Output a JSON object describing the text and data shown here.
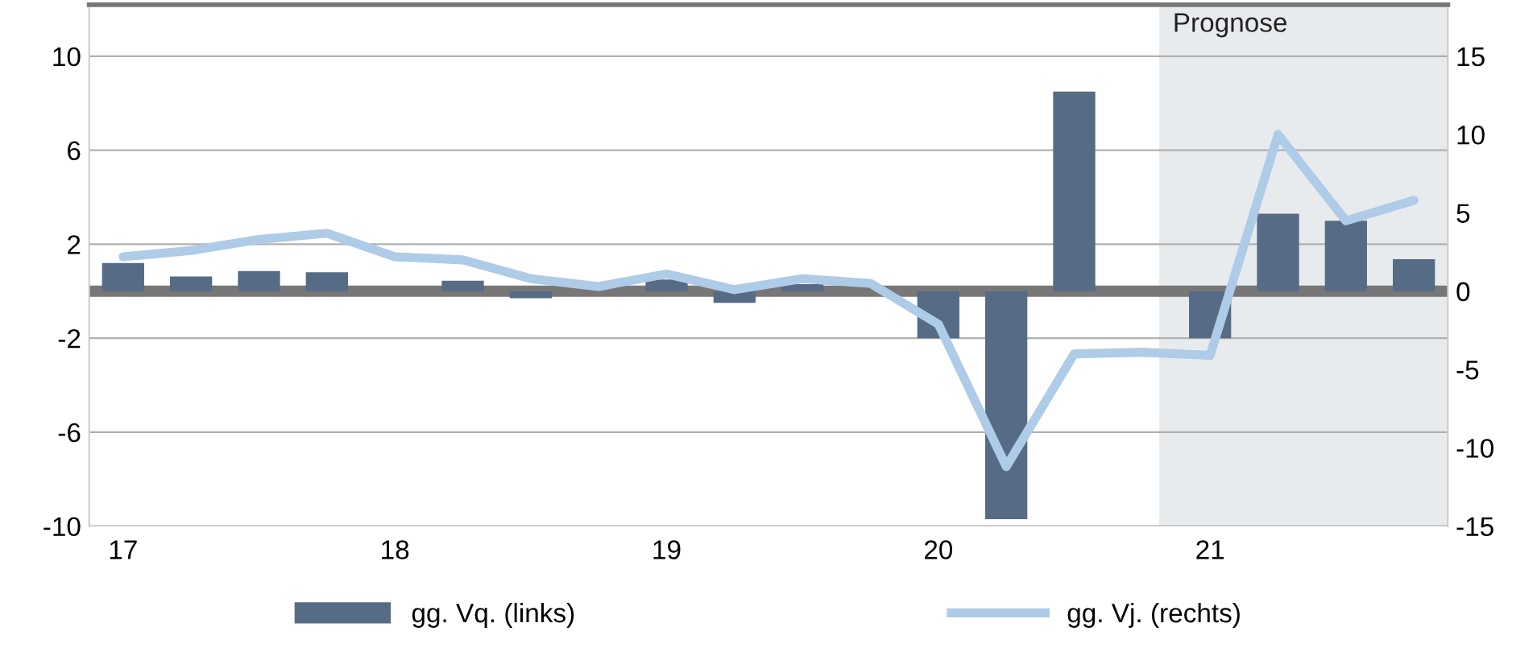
{
  "chart_data": {
    "type": "bar",
    "categories": [
      "17",
      null,
      null,
      null,
      "18",
      null,
      null,
      null,
      "19",
      null,
      null,
      null,
      "20",
      null,
      null,
      null,
      "21",
      null,
      null,
      null
    ],
    "series": [
      {
        "name": "gg. Vq. (links)",
        "color": "#566b85",
        "values": [
          1.2,
          0.63,
          0.86,
          0.81,
          0,
          0.45,
          -0.3,
          0,
          0.5,
          -0.5,
          0.3,
          null,
          -2.0,
          -9.7,
          8.5,
          0,
          -2.0,
          3.3,
          3.0,
          1.36
        ]
      },
      {
        "name": "gg. Vj. (rechts)",
        "type": "line",
        "axis": "y2",
        "color": "#aecbe8",
        "values": [
          2.2,
          2.6,
          3.3,
          3.7,
          2.2,
          2.0,
          0.8,
          0.3,
          1.1,
          0.1,
          0.8,
          0.5,
          -2.1,
          -11.2,
          -4.0,
          -3.9,
          -4.1,
          10.0,
          4.5,
          5.8
        ]
      }
    ],
    "ylim": [
      -10,
      12.2
    ],
    "yticks": [
      -10,
      -6,
      -2,
      2,
      6,
      10
    ],
    "y2lim": [
      -15,
      18.3
    ],
    "y2ticks": [
      -15,
      -10,
      -5,
      0,
      5,
      10,
      15
    ],
    "grid": "y",
    "legend": "bottom",
    "ref_lines": [
      {
        "axis": "y",
        "value": 0,
        "color": "#777777"
      }
    ],
    "annotations": [
      "Prognose"
    ]
  }
}
